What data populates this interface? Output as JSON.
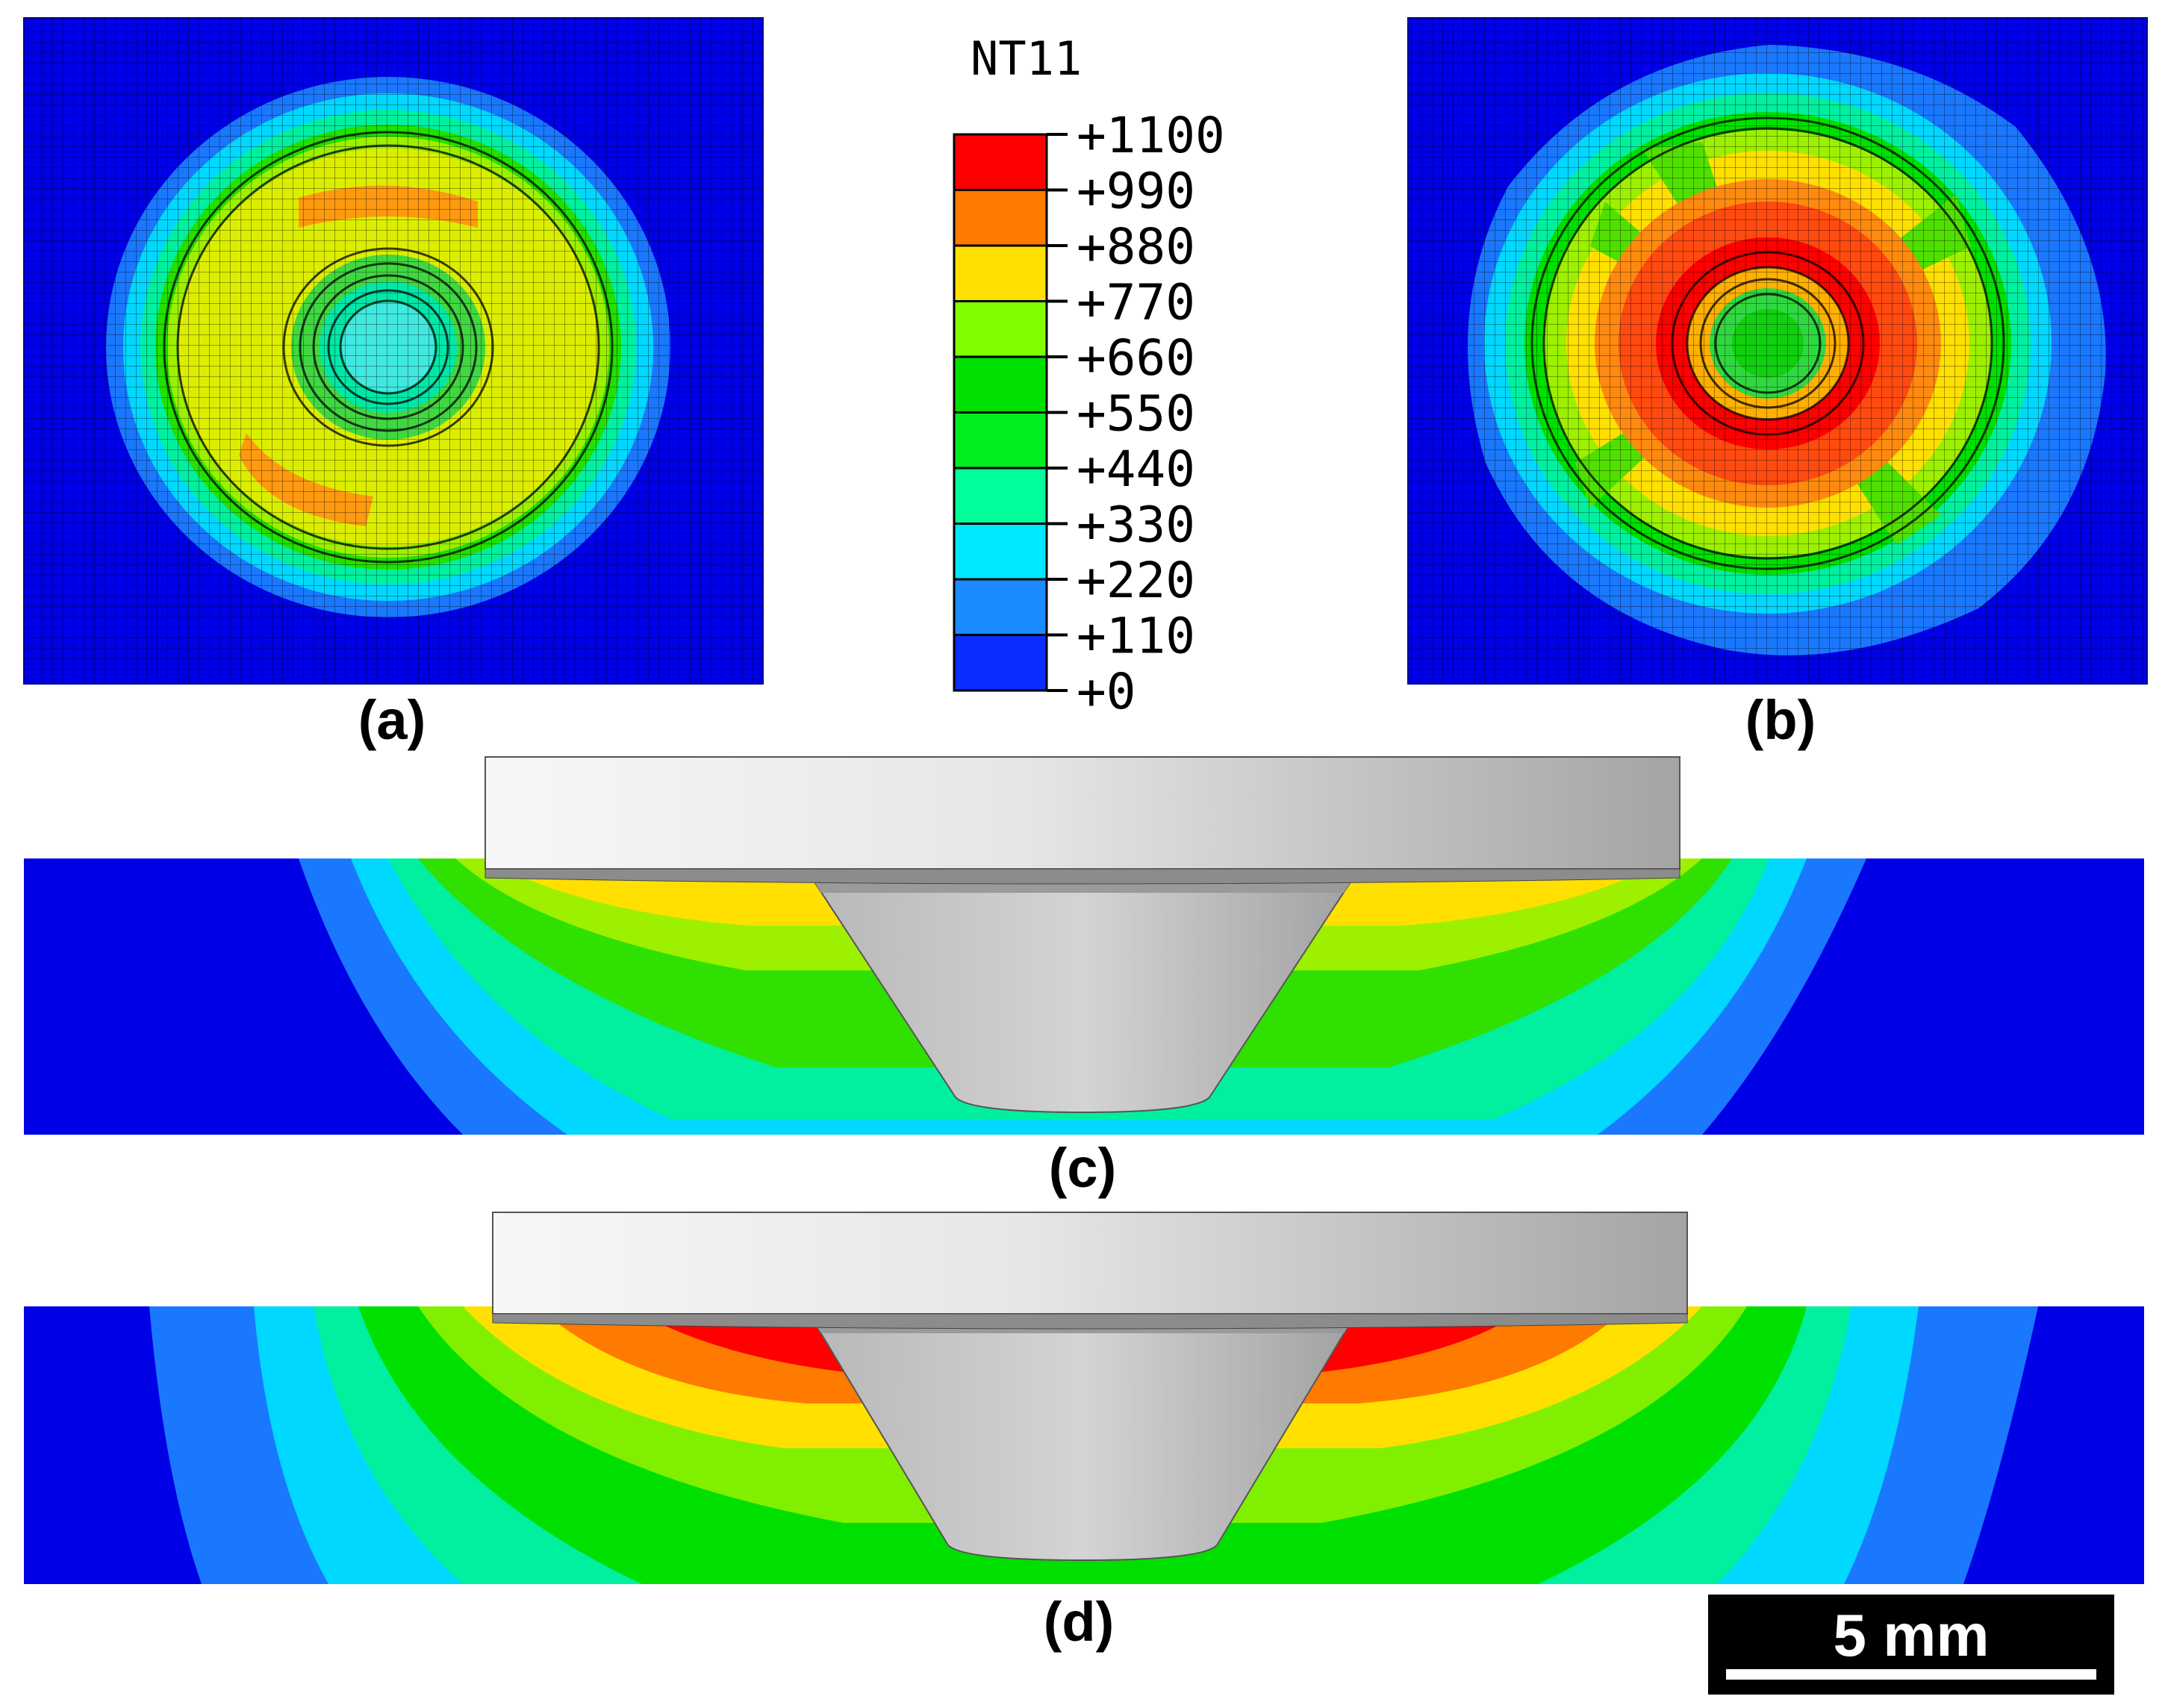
{
  "legend": {
    "title": "NT11",
    "levels": [
      {
        "label": "+1100",
        "color": "#ff0000"
      },
      {
        "label": "+990",
        "color": "#ff7a00"
      },
      {
        "label": "+880",
        "color": "#ffe000"
      },
      {
        "label": "+770",
        "color": "#80ff00"
      },
      {
        "label": "+660",
        "color": "#00e000"
      },
      {
        "label": "+550",
        "color": "#00ee20"
      },
      {
        "label": "+440",
        "color": "#00ff9a"
      },
      {
        "label": "+330",
        "color": "#00e8ff"
      },
      {
        "label": "+220",
        "color": "#1a8cff"
      },
      {
        "label": "+110",
        "color": "#0a2cff"
      },
      {
        "label": "+0",
        "color": ""
      }
    ]
  },
  "captions": {
    "a": "(a)",
    "b": "(b)",
    "c": "(c)",
    "d": "(d)"
  },
  "scale_bar": {
    "label": "5 mm"
  },
  "colors": {
    "background_blue": "#0000e6",
    "tool_light": "#f4f4f4",
    "tool_dark": "#a8a8a8",
    "mesh_line": "#000000"
  }
}
